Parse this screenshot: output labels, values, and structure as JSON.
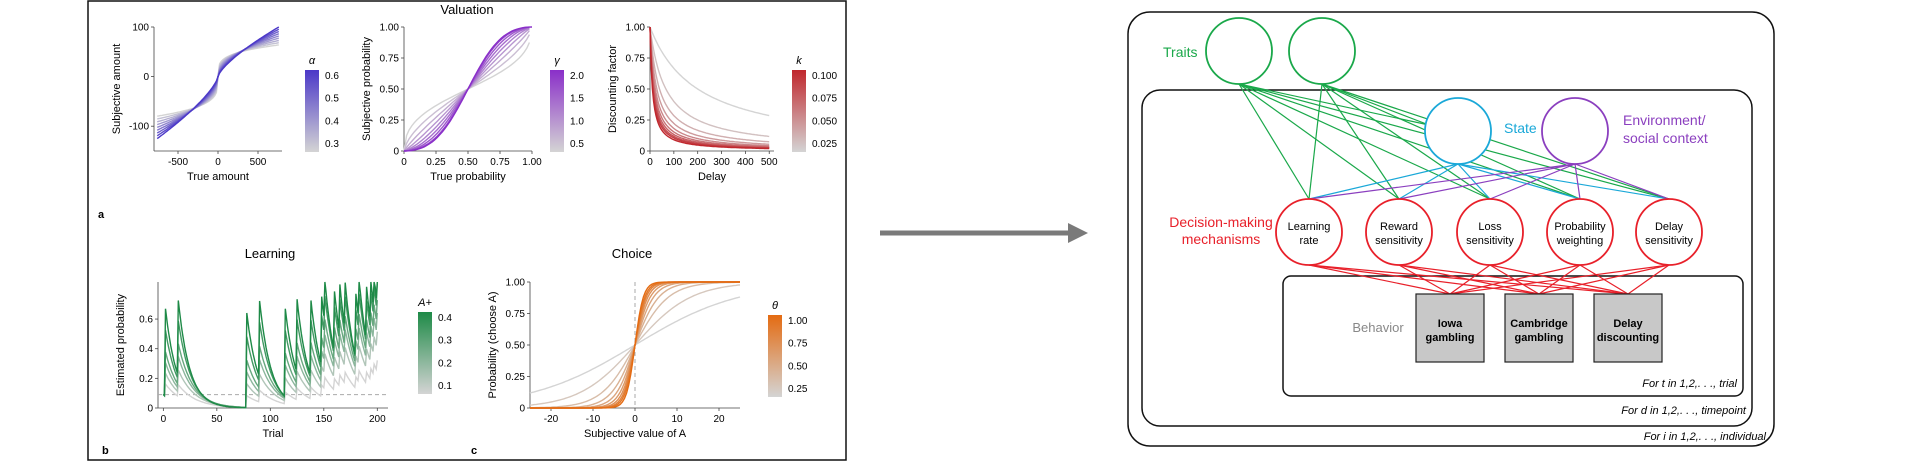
{
  "colors": {
    "alpha": "#4b38c8",
    "gamma": "#8a2fc9",
    "k": "#c0272d",
    "learn": "#1e8a47",
    "theta": "#e46b12",
    "grey": "#c8c8c8",
    "traits": "#1aa84a",
    "state": "#1aa8d8",
    "env": "#8b3fbf",
    "decision": "#e8202a"
  },
  "panels": {
    "valuation_title": "Valuation",
    "learning_title": "Learning",
    "choice_title": "Choice",
    "label_a": "a",
    "label_b": "b",
    "label_c": "c"
  },
  "chart_data": [
    {
      "type": "line",
      "title": "Valuation",
      "xlabel": "True amount",
      "ylabel": "Subjective amount",
      "xticks": [
        "-500",
        "0",
        "500"
      ],
      "yticks": [
        "100",
        "0",
        "-100"
      ],
      "xlim": [
        -800,
        800
      ],
      "ylim": [
        -150,
        100
      ],
      "legend_title": "α",
      "legend_ticks": [
        "0.6",
        "0.5",
        "0.4",
        "0.3"
      ],
      "series_param": [
        0.25,
        0.31,
        0.37,
        0.43,
        0.49,
        0.55,
        0.61,
        0.67,
        0.73
      ],
      "function": "power with loss aversion (1.2)"
    },
    {
      "type": "line",
      "xlabel": "True probability",
      "ylabel": "Subjective probability",
      "xticks": [
        "0",
        "0.25",
        "0.50",
        "0.75",
        "1.00"
      ],
      "yticks": [
        "1.00",
        "0.75",
        "0.50",
        "0.25",
        "0"
      ],
      "xlim": [
        0,
        1
      ],
      "ylim": [
        0,
        1
      ],
      "legend_title": "γ",
      "legend_ticks": [
        "2.0",
        "1.5",
        "1.0",
        "0.5"
      ],
      "series_param": [
        0.5,
        0.7,
        0.9,
        1.1,
        1.3,
        1.5,
        1.7,
        1.9,
        2.0
      ],
      "function": "probability weighting"
    },
    {
      "type": "line",
      "xlabel": "Delay",
      "ylabel": "Discounting factor",
      "xticks": [
        "0",
        "100",
        "200",
        "300",
        "400",
        "500"
      ],
      "yticks": [
        "1.00",
        "0.75",
        "0.50",
        "0.25",
        "0"
      ],
      "xlim": [
        0,
        520
      ],
      "ylim": [
        0,
        1
      ],
      "legend_title": "k",
      "legend_ticks": [
        "0.100",
        "0.075",
        "0.050",
        "0.025"
      ],
      "series_param": [
        0.005,
        0.015,
        0.025,
        0.035,
        0.045,
        0.055,
        0.065,
        0.075,
        0.085,
        0.1
      ],
      "function": "hyperbolic 1/(1+kD)"
    },
    {
      "type": "line",
      "title": "Learning",
      "xlabel": "Trial",
      "ylabel": "Estimated probability",
      "xticks": [
        "0",
        "50",
        "100",
        "150",
        "200"
      ],
      "yticks": [
        "0.6",
        "0.4",
        "0.2",
        "0"
      ],
      "xlim": [
        -5,
        210
      ],
      "ylim": [
        0,
        0.85
      ],
      "legend_title": "A+",
      "legend_ticks": [
        "0.4",
        "0.3",
        "0.2",
        "0.1"
      ],
      "series_param": [
        0.05,
        0.1,
        0.15,
        0.2,
        0.3,
        0.4
      ],
      "baseline": 0.09,
      "events": [
        2,
        14,
        78,
        90,
        114,
        125,
        138,
        148,
        151,
        160,
        165,
        170,
        180,
        183,
        190,
        194,
        197,
        200
      ]
    },
    {
      "type": "line",
      "title": "Choice",
      "xlabel": "Subjective value of A",
      "ylabel": "Probability (choose A)",
      "xticks": [
        "-20",
        "-10",
        "0",
        "10",
        "20"
      ],
      "yticks": [
        "1.00",
        "0.75",
        "0.50",
        "0.25",
        "0"
      ],
      "xlim": [
        -25,
        25
      ],
      "ylim": [
        0,
        1
      ],
      "legend_title": "θ",
      "legend_ticks": [
        "1.00",
        "0.75",
        "0.50",
        "0.25"
      ],
      "series_param": [
        0.08,
        0.15,
        0.25,
        0.35,
        0.45,
        0.55,
        0.65,
        0.75,
        0.85,
        1.0
      ],
      "function": "logistic"
    }
  ],
  "diagram": {
    "traits_label": "Traits",
    "state_label": "State",
    "env_label_line1": "Environment/",
    "env_label_line2": "social context",
    "decision_label_line1": "Decision-making",
    "decision_label_line2": "mechanisms",
    "behavior_label": "Behavior",
    "mechanisms": [
      {
        "line1": "Learning",
        "line2": "rate"
      },
      {
        "line1": "Reward",
        "line2": "sensitivity"
      },
      {
        "line1": "Loss",
        "line2": "sensitivity"
      },
      {
        "line1": "Probability",
        "line2": "weighting"
      },
      {
        "line1": "Delay",
        "line2": "sensitivity"
      }
    ],
    "tasks": [
      {
        "line1": "Iowa",
        "line2": "gambling"
      },
      {
        "line1": "Cambridge",
        "line2": "gambling"
      },
      {
        "line1": "Delay",
        "line2": "discounting"
      }
    ],
    "plate_trial": "For t in 1,2,. . ., trial",
    "plate_timepoint": "For d in 1,2,. . ., timepoint",
    "plate_individual": "For i in 1,2,. . ., individual"
  }
}
